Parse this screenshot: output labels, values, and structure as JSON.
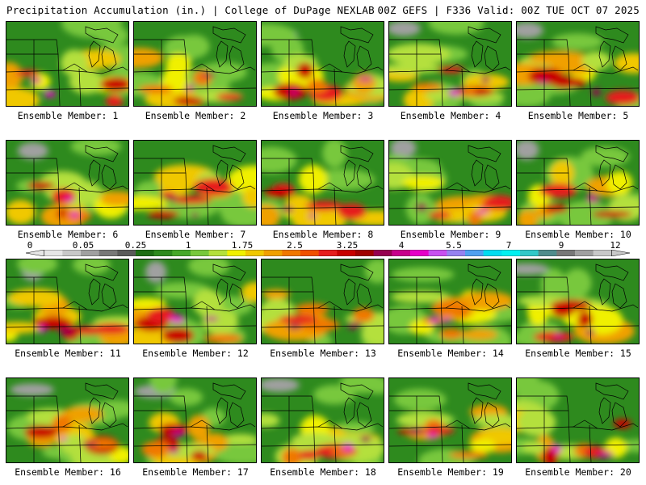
{
  "header": {
    "left": "Precipitation Accumulation (in.) | College of DuPage NEXLAB",
    "right": "00Z GEFS | F336 Valid: 00Z TUE OCT 07 2025"
  },
  "colorbar": {
    "labels": [
      "0",
      "0.05",
      "0.25",
      "1",
      "1.75",
      "2.5",
      "3.25",
      "4",
      "5.5",
      "7",
      "9",
      "12"
    ],
    "colors": [
      "#e6e6e6",
      "#c8c8c8",
      "#a0a0a0",
      "#787878",
      "#5a5a5a",
      "#1e6e14",
      "#2e8a1e",
      "#46a82a",
      "#78c83c",
      "#b4e03c",
      "#f0f000",
      "#f0c800",
      "#f0a000",
      "#f07800",
      "#f05000",
      "#e61e1e",
      "#c80000",
      "#a00000",
      "#960050",
      "#c8008c",
      "#e600c8",
      "#c850f0",
      "#9682f0",
      "#50a0f0",
      "#00dcf0",
      "#00f0f0",
      "#32c8c8",
      "#508c8c",
      "#787878",
      "#a0a0a0",
      "#c8c8c8"
    ]
  },
  "panels": [
    {
      "label": "Ensemble Member: 1"
    },
    {
      "label": "Ensemble Member: 2"
    },
    {
      "label": "Ensemble Member: 3"
    },
    {
      "label": "Ensemble Member: 4"
    },
    {
      "label": "Ensemble Member: 5"
    },
    {
      "label": "Ensemble Member: 6"
    },
    {
      "label": "Ensemble Member: 7"
    },
    {
      "label": "Ensemble Member: 8"
    },
    {
      "label": "Ensemble Member: 9"
    },
    {
      "label": "Ensemble Member: 10"
    },
    {
      "label": "Ensemble Member: 11"
    },
    {
      "label": "Ensemble Member: 12"
    },
    {
      "label": "Ensemble Member: 13"
    },
    {
      "label": "Ensemble Member: 14"
    },
    {
      "label": "Ensemble Member: 15"
    },
    {
      "label": "Ensemble Member: 16"
    },
    {
      "label": "Ensemble Member: 17"
    },
    {
      "label": "Ensemble Member: 18"
    },
    {
      "label": "Ensemble Member: 19"
    },
    {
      "label": "Ensemble Member: 20"
    }
  ]
}
